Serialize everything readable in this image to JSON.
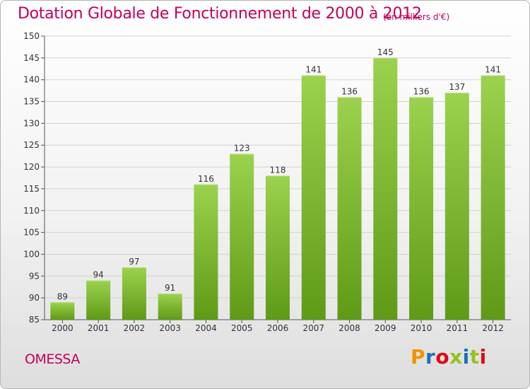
{
  "header": {
    "title": "Dotation Globale de Fonctionnement de 2000 à 2012",
    "unit": "(en milliers d'€)"
  },
  "footer": {
    "commune": "OMESSA",
    "logo_text": "Proxiti"
  },
  "colors": {
    "accent": "#c3005a",
    "bar_top": "#9bd24e",
    "bar_bottom": "#5f9a16",
    "logo_letters": [
      "#f39200",
      "#1d71b8",
      "#e30613",
      "#95c11f",
      "#1d71b8",
      "#95c11f",
      "#e30613"
    ]
  },
  "chart_data": {
    "type": "bar",
    "title": "Dotation Globale de Fonctionnement de 2000 à 2012",
    "xlabel": "",
    "ylabel": "",
    "categories": [
      "2000",
      "2001",
      "2002",
      "2003",
      "2004",
      "2005",
      "2006",
      "2007",
      "2008",
      "2009",
      "2010",
      "2011",
      "2012"
    ],
    "values": [
      89,
      94,
      97,
      91,
      116,
      123,
      118,
      141,
      136,
      145,
      136,
      137,
      141
    ],
    "ylim": [
      85,
      150
    ],
    "yticks": [
      85,
      90,
      95,
      100,
      105,
      110,
      115,
      120,
      125,
      130,
      135,
      140,
      145,
      150
    ],
    "grid": true,
    "data_labels": true
  }
}
